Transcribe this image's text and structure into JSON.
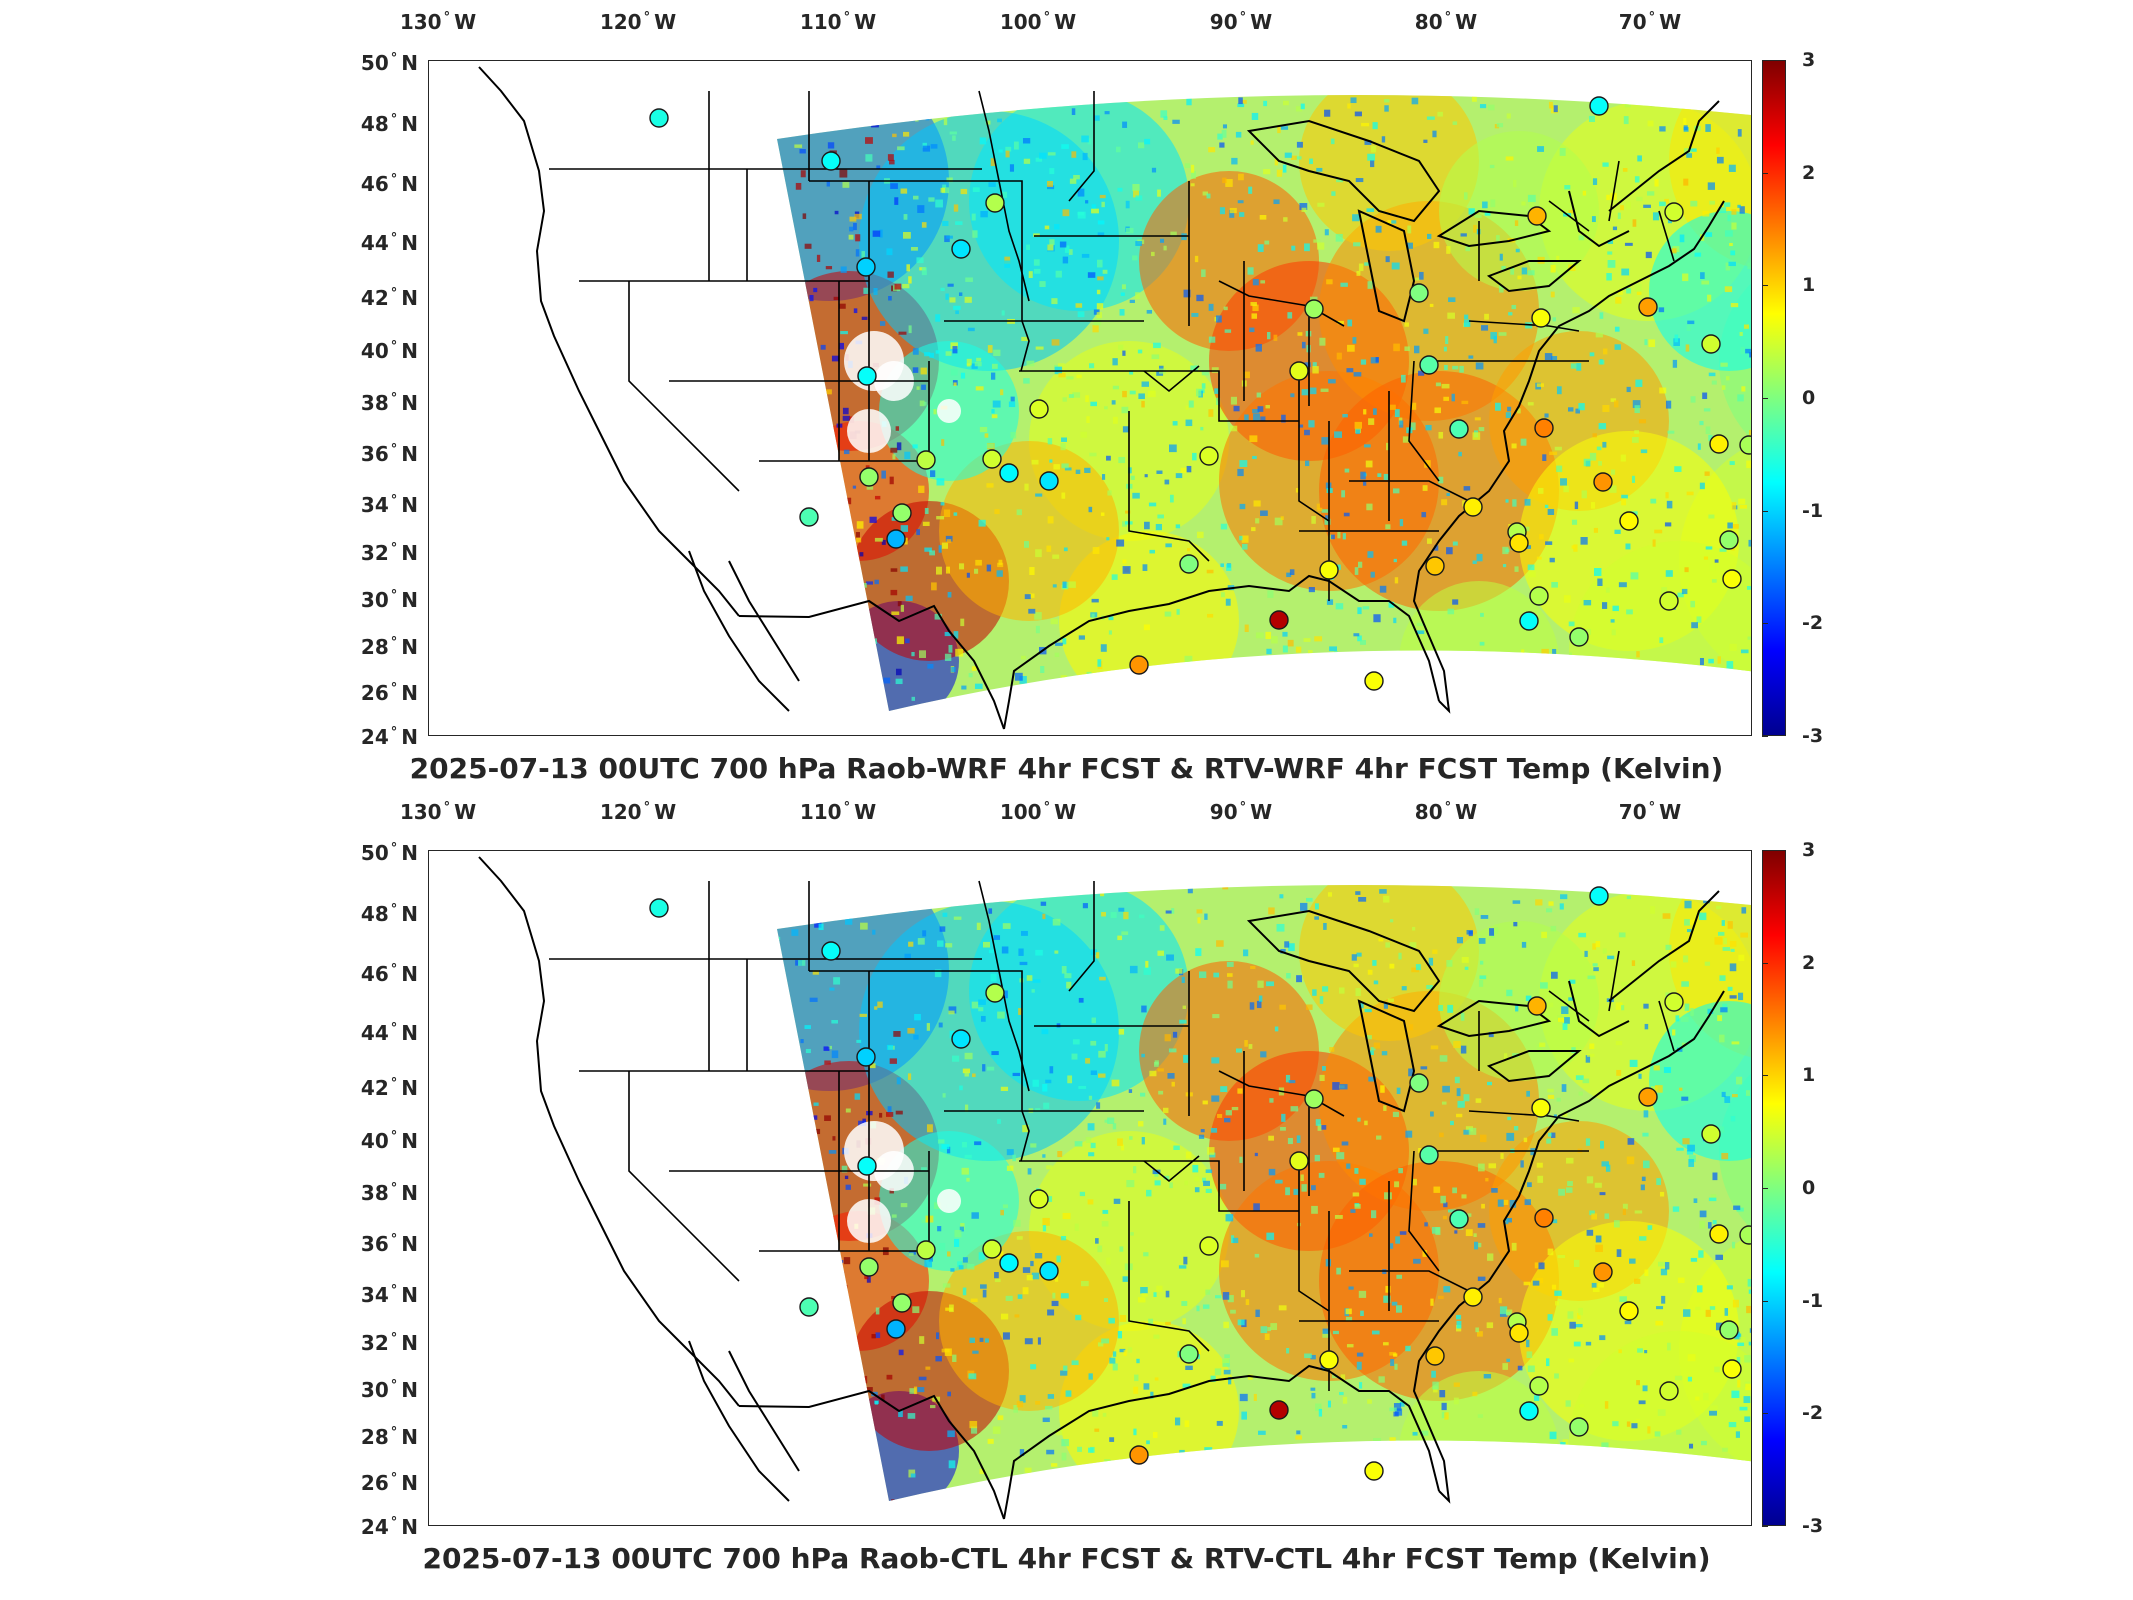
{
  "longitude_labels": [
    {
      "value": "130",
      "hemi": "W"
    },
    {
      "value": "120",
      "hemi": "W"
    },
    {
      "value": "110",
      "hemi": "W"
    },
    {
      "value": "100",
      "hemi": "W"
    },
    {
      "value": "90",
      "hemi": "W"
    },
    {
      "value": "80",
      "hemi": "W"
    },
    {
      "value": "70",
      "hemi": "W"
    }
  ],
  "latitude_labels": [
    {
      "value": "50",
      "hemi": "N"
    },
    {
      "value": "48",
      "hemi": "N"
    },
    {
      "value": "46",
      "hemi": "N"
    },
    {
      "value": "44",
      "hemi": "N"
    },
    {
      "value": "42",
      "hemi": "N"
    },
    {
      "value": "40",
      "hemi": "N"
    },
    {
      "value": "38",
      "hemi": "N"
    },
    {
      "value": "36",
      "hemi": "N"
    },
    {
      "value": "34",
      "hemi": "N"
    },
    {
      "value": "32",
      "hemi": "N"
    },
    {
      "value": "30",
      "hemi": "N"
    },
    {
      "value": "28",
      "hemi": "N"
    },
    {
      "value": "26",
      "hemi": "N"
    },
    {
      "value": "24",
      "hemi": "N"
    }
  ],
  "colorbar": {
    "ticks": [
      "3",
      "2",
      "1",
      "0",
      "-1",
      "-2",
      "-3"
    ],
    "colormap": "jet",
    "range": [
      -3,
      3
    ]
  },
  "panels": [
    {
      "title": "2025-07-13 00UTC 700 hPa Raob-WRF 4hr FCST & RTV-WRF 4hr FCST Temp (Kelvin)"
    },
    {
      "title": "2025-07-13 00UTC 700 hPa Raob-CTL 4hr FCST & RTV-CTL 4hr FCST Temp (Kelvin)"
    }
  ],
  "map": {
    "lon_range": [
      -131,
      -63
    ],
    "lat_range": [
      24,
      50
    ],
    "field_color_dominant": "#c8f05a",
    "station_marker": "circle"
  }
}
